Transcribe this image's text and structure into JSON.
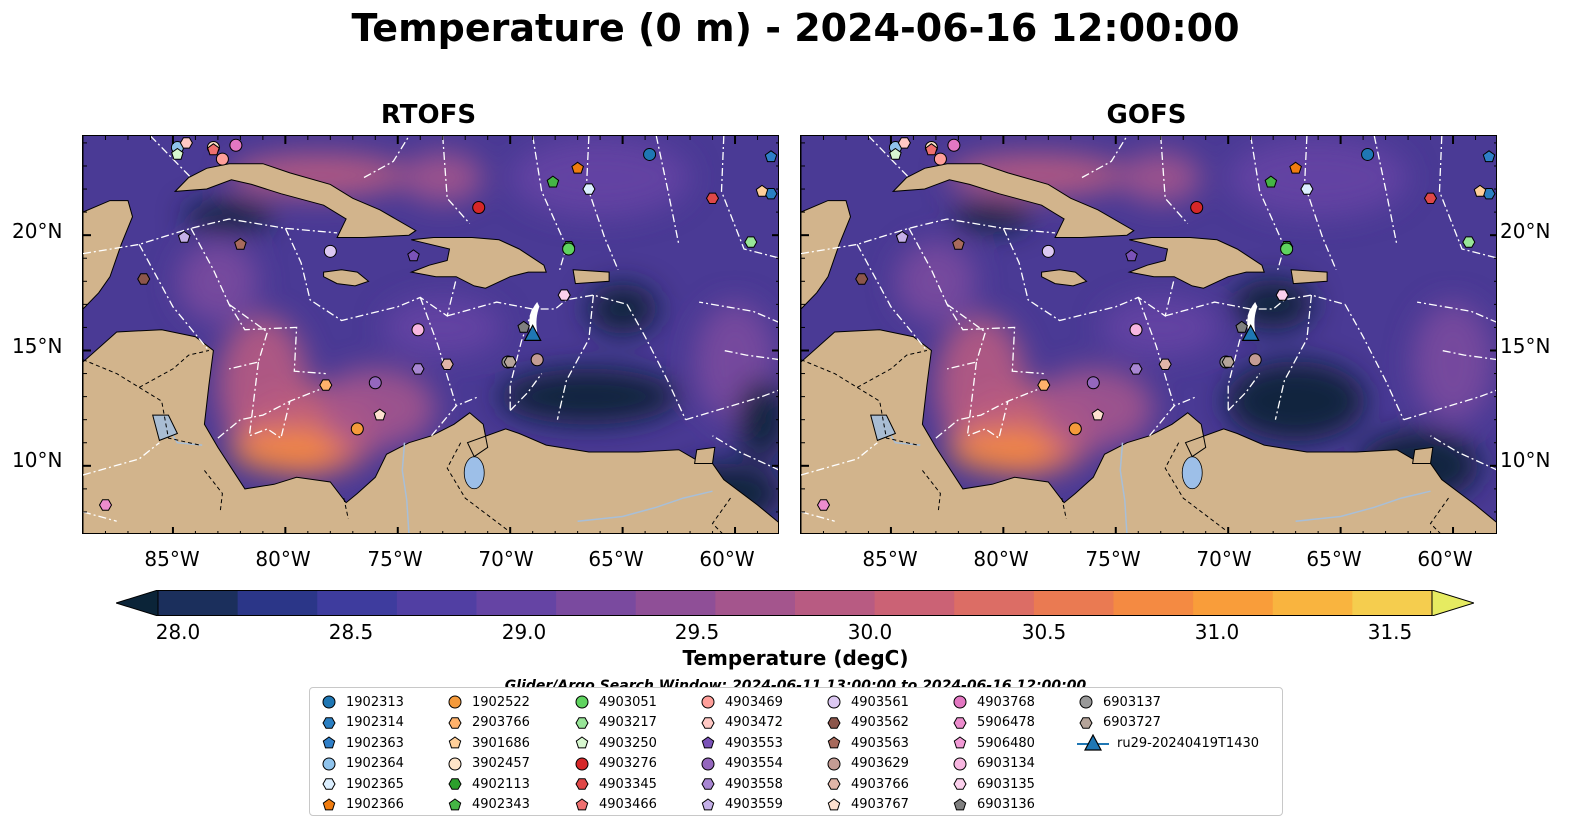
{
  "title": "Temperature (0 m) - 2024-06-16 12:00:00",
  "panels": [
    {
      "name": "RTOFS"
    },
    {
      "name": "GOFS"
    }
  ],
  "axes": {
    "lat_ticks": [
      "20°N",
      "15°N",
      "10°N"
    ],
    "lon_ticks": [
      "85°W",
      "80°W",
      "75°W",
      "70°W",
      "65°W",
      "60°W"
    ]
  },
  "colorbar": {
    "label": "Temperature (degC)",
    "ticks": [
      "28.0",
      "28.5",
      "29.0",
      "29.5",
      "30.0",
      "30.5",
      "31.0",
      "31.5"
    ],
    "min": 28.0,
    "max": 31.5,
    "extend": "both",
    "colors": [
      "#0b2438",
      "#1b2f5c",
      "#2b3688",
      "#3e3c9e",
      "#513fa3",
      "#6544a4",
      "#7a4a9f",
      "#8f4f97",
      "#a4558d",
      "#b85b82",
      "#cb6275",
      "#dc6d65",
      "#ea7a52",
      "#f48a42",
      "#f99d3a",
      "#f9b43f",
      "#f5cd4e",
      "#e6eb61"
    ]
  },
  "search_window": "Glider/Argo Search Window: 2024-06-11 13:00:00 to 2024-06-16 12:00:00",
  "colors": {
    "land": "#d2b48c",
    "lake": "#9dbfe8",
    "river": "#a8bfd8",
    "eez_line": "#ffffff",
    "deep_water": "#0b2438",
    "water_mid": "#4a3a95",
    "water_warm": "#a04f8e"
  },
  "legend": [
    {
      "label": "1902313",
      "marker": "circle",
      "color": "#1f77b4"
    },
    {
      "label": "1902314",
      "marker": "hexagon",
      "color": "#2a7fc2"
    },
    {
      "label": "1902363",
      "marker": "pentagon",
      "color": "#2f7fc8"
    },
    {
      "label": "1902364",
      "marker": "circle",
      "color": "#8fc3ec"
    },
    {
      "label": "1902365",
      "marker": "hexagon",
      "color": "#dcefff"
    },
    {
      "label": "1902366",
      "marker": "pentagon",
      "color": "#f07c0f"
    },
    {
      "label": "1902522",
      "marker": "circle",
      "color": "#f59a3b"
    },
    {
      "label": "2903766",
      "marker": "hexagon",
      "color": "#ffb26b"
    },
    {
      "label": "3901686",
      "marker": "pentagon",
      "color": "#ffcf9a"
    },
    {
      "label": "3902457",
      "marker": "circle",
      "color": "#ffe5c8"
    },
    {
      "label": "4902113",
      "marker": "hexagon",
      "color": "#2ca02c"
    },
    {
      "label": "4902343",
      "marker": "pentagon",
      "color": "#45b545"
    },
    {
      "label": "4903051",
      "marker": "circle",
      "color": "#5fd35f"
    },
    {
      "label": "4903217",
      "marker": "hexagon",
      "color": "#98e598"
    },
    {
      "label": "4903250",
      "marker": "pentagon",
      "color": "#d8f8d0"
    },
    {
      "label": "4903276",
      "marker": "circle",
      "color": "#d62728"
    },
    {
      "label": "4903345",
      "marker": "hexagon",
      "color": "#e04848"
    },
    {
      "label": "4903466",
      "marker": "pentagon",
      "color": "#ef7070"
    },
    {
      "label": "4903469",
      "marker": "circle",
      "color": "#ff9f9a"
    },
    {
      "label": "4903472",
      "marker": "hexagon",
      "color": "#ffc8c4"
    },
    {
      "label": "4903553",
      "marker": "pentagon",
      "color": "#7a52b8"
    },
    {
      "label": "4903554",
      "marker": "circle",
      "color": "#9467bd"
    },
    {
      "label": "4903558",
      "marker": "hexagon",
      "color": "#a886d2"
    },
    {
      "label": "4903559",
      "marker": "pentagon",
      "color": "#c5b0e8"
    },
    {
      "label": "4903561",
      "marker": "circle",
      "color": "#dcc8f2"
    },
    {
      "label": "4903562",
      "marker": "hexagon",
      "color": "#8c564b"
    },
    {
      "label": "4903563",
      "marker": "pentagon",
      "color": "#a86a5c"
    },
    {
      "label": "4903629",
      "marker": "circle",
      "color": "#c49c94"
    },
    {
      "label": "4903766",
      "marker": "hexagon",
      "color": "#e0b5a8"
    },
    {
      "label": "4903767",
      "marker": "pentagon",
      "color": "#fde0cf"
    },
    {
      "label": "4903768",
      "marker": "circle",
      "color": "#e377c2"
    },
    {
      "label": "5906478",
      "marker": "hexagon",
      "color": "#ec8ccd"
    },
    {
      "label": "5906480",
      "marker": "pentagon",
      "color": "#f29ad6"
    },
    {
      "label": "6903134",
      "marker": "circle",
      "color": "#f7b6e0"
    },
    {
      "label": "6903135",
      "marker": "hexagon",
      "color": "#fbd0ec"
    },
    {
      "label": "6903136",
      "marker": "pentagon",
      "color": "#7f7f7f"
    },
    {
      "label": "6903137",
      "marker": "circle",
      "color": "#999999"
    },
    {
      "label": "6903727",
      "marker": "hexagon",
      "color": "#b5a49a"
    },
    {
      "label": "ru29-20240419T1430",
      "marker": "triangle-line",
      "color": "#1f77b4"
    }
  ],
  "floats": [
    {
      "id": "1902313",
      "lon": -63.8,
      "lat": 23.5
    },
    {
      "id": "1902314",
      "lon": -58.4,
      "lat": 21.8
    },
    {
      "id": "1902363",
      "lon": -58.4,
      "lat": 23.4
    },
    {
      "id": "1902364",
      "lon": -84.8,
      "lat": 23.8
    },
    {
      "id": "1902365",
      "lon": -66.5,
      "lat": 22.0
    },
    {
      "id": "1902366",
      "lon": -67.0,
      "lat": 22.9
    },
    {
      "id": "1902522",
      "lon": -76.8,
      "lat": 11.6
    },
    {
      "id": "2903766",
      "lon": -78.2,
      "lat": 13.5
    },
    {
      "id": "3901686",
      "lon": -58.8,
      "lat": 21.9
    },
    {
      "id": "3902457",
      "lon": -83.2,
      "lat": 23.8
    },
    {
      "id": "4902113",
      "lon": -67.4,
      "lat": 19.5
    },
    {
      "id": "4902343",
      "lon": -68.1,
      "lat": 22.3
    },
    {
      "id": "4903051",
      "lon": -67.4,
      "lat": 19.4
    },
    {
      "id": "4903217",
      "lon": -59.3,
      "lat": 19.7
    },
    {
      "id": "4903250",
      "lon": -84.8,
      "lat": 23.5
    },
    {
      "id": "4903276",
      "lon": -71.4,
      "lat": 21.2
    },
    {
      "id": "4903345",
      "lon": -61.0,
      "lat": 21.6
    },
    {
      "id": "4903466",
      "lon": -83.2,
      "lat": 23.7
    },
    {
      "id": "4903469",
      "lon": -82.8,
      "lat": 23.3
    },
    {
      "id": "4903472",
      "lon": -84.4,
      "lat": 24.0
    },
    {
      "id": "4903553",
      "lon": -74.3,
      "lat": 19.1
    },
    {
      "id": "4903554",
      "lon": -76.0,
      "lat": 13.6
    },
    {
      "id": "4903558",
      "lon": -74.1,
      "lat": 14.2
    },
    {
      "id": "4903559",
      "lon": -84.5,
      "lat": 19.9
    },
    {
      "id": "4903561",
      "lon": -78.0,
      "lat": 19.3
    },
    {
      "id": "4903562",
      "lon": -86.3,
      "lat": 18.1
    },
    {
      "id": "4903563",
      "lon": -82.0,
      "lat": 19.6
    },
    {
      "id": "4903629",
      "lon": -68.8,
      "lat": 14.6
    },
    {
      "id": "4903766",
      "lon": -72.8,
      "lat": 14.4
    },
    {
      "id": "4903767",
      "lon": -75.8,
      "lat": 12.2
    },
    {
      "id": "4903768",
      "lon": -82.2,
      "lat": 23.9
    },
    {
      "id": "5906478",
      "lon": -88.0,
      "lat": 8.3
    },
    {
      "id": "6903134",
      "lon": -74.1,
      "lat": 15.9
    },
    {
      "id": "6903135",
      "lon": -67.6,
      "lat": 17.4
    },
    {
      "id": "6903136",
      "lon": -69.4,
      "lat": 16.0
    },
    {
      "id": "6903137",
      "lon": -70.1,
      "lat": 14.5
    },
    {
      "id": "6903727",
      "lon": -70.0,
      "lat": 14.5
    }
  ],
  "glider": {
    "id": "ru29-20240419T1430",
    "lon": -69.0,
    "lat": 15.7
  }
}
